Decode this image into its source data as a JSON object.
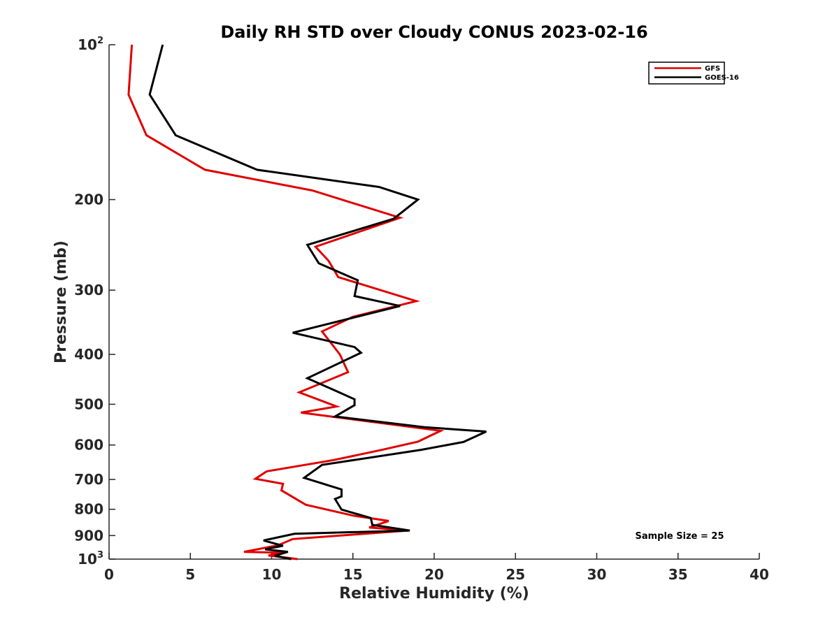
{
  "chart_data": {
    "type": "line",
    "title": "Daily RH STD over Cloudy CONUS 2023-02-16",
    "xlabel": "Relative Humidity (%)",
    "ylabel": "Pressure (mb)",
    "xlim": [
      0,
      40
    ],
    "ylim": [
      100,
      1000
    ],
    "yscale": "log",
    "yreversed": true,
    "x_ticks": [
      0,
      5,
      10,
      15,
      20,
      25,
      30,
      35,
      40
    ],
    "y_ticks": [
      {
        "value": 100,
        "base": "10",
        "exp": "2"
      },
      {
        "value": 200,
        "label": "200"
      },
      {
        "value": 300,
        "label": "300"
      },
      {
        "value": 400,
        "label": "400"
      },
      {
        "value": 500,
        "label": "500"
      },
      {
        "value": 600,
        "label": "600"
      },
      {
        "value": 700,
        "label": "700"
      },
      {
        "value": 800,
        "label": "800"
      },
      {
        "value": 900,
        "label": "900"
      },
      {
        "value": 1000,
        "base": "10",
        "exp": "3"
      }
    ],
    "legend_position": "top-right",
    "series": [
      {
        "name": "GFS",
        "color": "#e00000",
        "points": [
          [
            1.4,
            100
          ],
          [
            1.2,
            125
          ],
          [
            2.3,
            150
          ],
          [
            5.9,
            175
          ],
          [
            12.5,
            192
          ],
          [
            17.9,
            217
          ],
          [
            12.7,
            247
          ],
          [
            13.5,
            263
          ],
          [
            14.1,
            283
          ],
          [
            18.9,
            315
          ],
          [
            15.0,
            338
          ],
          [
            13.1,
            361
          ],
          [
            14.2,
            400
          ],
          [
            14.7,
            433
          ],
          [
            11.7,
            474
          ],
          [
            14.0,
            505
          ],
          [
            11.8,
            519
          ],
          [
            20.4,
            563
          ],
          [
            19.0,
            591
          ],
          [
            16.8,
            613
          ],
          [
            13.8,
            642
          ],
          [
            9.7,
            675
          ],
          [
            9.0,
            698
          ],
          [
            10.7,
            714
          ],
          [
            10.6,
            735
          ],
          [
            12.1,
            784
          ],
          [
            15.0,
            823
          ],
          [
            17.2,
            843
          ],
          [
            16.0,
            868
          ],
          [
            18.4,
            880
          ],
          [
            11.3,
            914
          ],
          [
            10.4,
            940
          ],
          [
            8.3,
            968
          ],
          [
            10.7,
            972
          ],
          [
            9.8,
            984
          ],
          [
            11.6,
            1000
          ]
        ]
      },
      {
        "name": "GOES-16",
        "color": "#000000",
        "points": [
          [
            3.3,
            100
          ],
          [
            2.5,
            125
          ],
          [
            4.1,
            150
          ],
          [
            9.1,
            175
          ],
          [
            16.6,
            189
          ],
          [
            19.0,
            200
          ],
          [
            17.5,
            218
          ],
          [
            12.2,
            245
          ],
          [
            12.9,
            266
          ],
          [
            15.3,
            287
          ],
          [
            15.1,
            308
          ],
          [
            17.9,
            322
          ],
          [
            11.3,
            363
          ],
          [
            15.1,
            387
          ],
          [
            15.5,
            397
          ],
          [
            12.2,
            445
          ],
          [
            13.9,
            470
          ],
          [
            15.1,
            489
          ],
          [
            15.1,
            502
          ],
          [
            13.9,
            528
          ],
          [
            19.4,
            554
          ],
          [
            23.2,
            565
          ],
          [
            21.8,
            592
          ],
          [
            19.2,
            613
          ],
          [
            13.1,
            656
          ],
          [
            12.0,
            695
          ],
          [
            14.3,
            732
          ],
          [
            14.3,
            755
          ],
          [
            13.9,
            764
          ],
          [
            14.3,
            801
          ],
          [
            16.1,
            832
          ],
          [
            16.2,
            858
          ],
          [
            18.5,
            880
          ],
          [
            11.4,
            893
          ],
          [
            9.5,
            920
          ],
          [
            10.7,
            942
          ],
          [
            9.6,
            957
          ],
          [
            11.0,
            968
          ],
          [
            10.2,
            985
          ],
          [
            11.2,
            1000
          ]
        ]
      }
    ],
    "annotation": "Sample Size = 25"
  }
}
